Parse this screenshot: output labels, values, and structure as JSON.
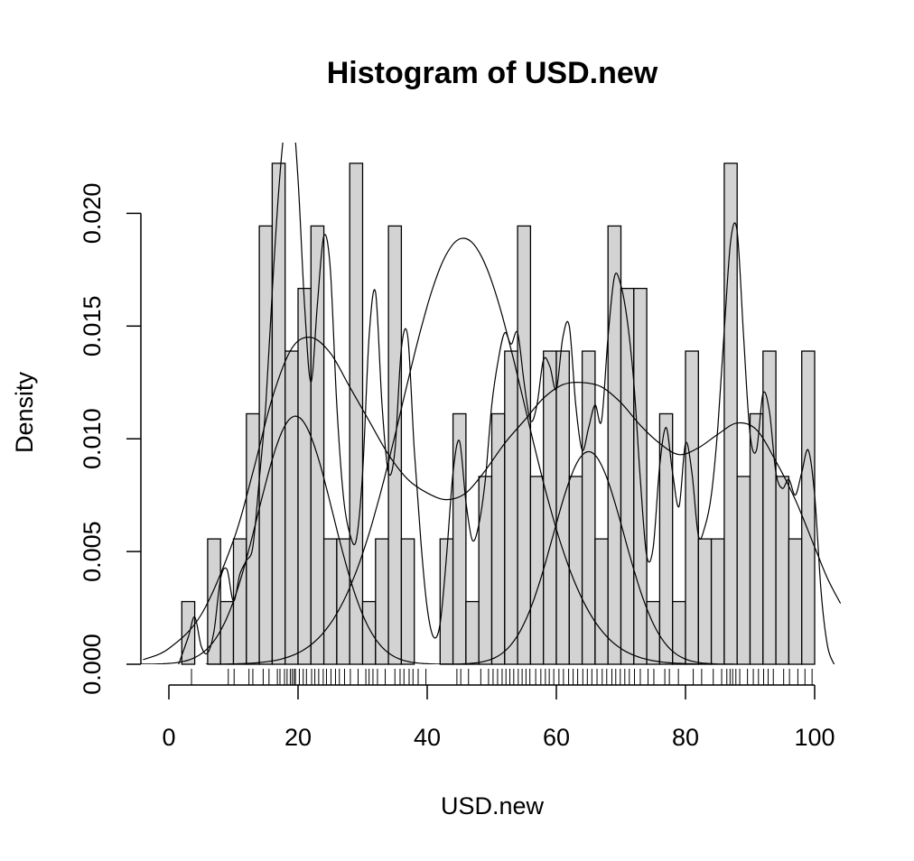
{
  "chart_data": {
    "type": "histogram",
    "title": "Histogram of USD.new",
    "xlabel": "USD.new",
    "ylabel": "Density",
    "xlim": [
      -4,
      104
    ],
    "ylim": [
      0,
      0.0225
    ],
    "x_ticks": [
      0,
      20,
      40,
      60,
      80,
      100
    ],
    "y_ticks": [
      0.0,
      0.005,
      0.01,
      0.015,
      0.02
    ],
    "x_tick_labels": [
      "0",
      "20",
      "40",
      "60",
      "80",
      "100"
    ],
    "y_tick_labels": [
      "0.000",
      "0.005",
      "0.010",
      "0.015",
      "0.020"
    ],
    "bin_width": 2,
    "bin_start": 2,
    "density": [
      0.00278,
      0,
      0.00556,
      0.00278,
      0.00556,
      0.01111,
      0.01944,
      0.02222,
      0.01389,
      0.01667,
      0.01944,
      0.00556,
      0.00556,
      0.02222,
      0.00278,
      0.00556,
      0.01944,
      0.00556,
      0,
      0,
      0.00556,
      0.01111,
      0.00278,
      0.00833,
      0.01111,
      0.01389,
      0.01944,
      0.00833,
      0.01389,
      0.01389,
      0.00833,
      0.01389,
      0.00556,
      0.01944,
      0.01667,
      0.01667,
      0.00278,
      0.01111,
      0.00278,
      0.01389,
      0.00556,
      0.00556,
      0.02222,
      0.00833,
      0.01111,
      0.01389,
      0.00833,
      0.00556,
      0.01389
    ],
    "rug": [
      3.5,
      9.2,
      10.1,
      12.4,
      13.0,
      14.6,
      15.5,
      16.8,
      17.2,
      17.9,
      18.3,
      18.8,
      19.1,
      19.4,
      19.6,
      20.2,
      20.8,
      21.3,
      22.1,
      22.6,
      23.2,
      23.9,
      24.4,
      25.1,
      25.8,
      26.4,
      27.2,
      28.1,
      29.3,
      30.5,
      31.0,
      31.6,
      32.3,
      33.5,
      35.0,
      35.8,
      36.4,
      37.2,
      37.8,
      38.6,
      39.8,
      44.6,
      45.2,
      46.4,
      48.3,
      49.5,
      50.2,
      50.9,
      51.6,
      52.2,
      52.8,
      53.4,
      54.1,
      54.7,
      55.3,
      55.9,
      56.8,
      57.6,
      58.3,
      58.9,
      59.6,
      60.4,
      61.1,
      61.9,
      62.6,
      63.3,
      64.1,
      64.8,
      65.5,
      66.3,
      67.1,
      67.8,
      68.6,
      69.2,
      69.9,
      70.6,
      71.3,
      72.1,
      73.0,
      74.2,
      75.1,
      76.8,
      77.5,
      78.9,
      81.2,
      82.5,
      84.3,
      85.6,
      86.4,
      86.9,
      87.3,
      87.8,
      88.4,
      89.6,
      90.5,
      91.3,
      92.1,
      92.8,
      93.6,
      95.2,
      96.1,
      97.4,
      98.5,
      99.6
    ],
    "curves": [
      {
        "kind": "kernel density (small bandwidth)",
        "points": [
          [
            1.5,
            0.0
          ],
          [
            3,
            0.0012
          ],
          [
            4,
            0.0021
          ],
          [
            5,
            0.0008
          ],
          [
            6,
            0.0005
          ],
          [
            7,
            0.0015
          ],
          [
            8,
            0.0038
          ],
          [
            9,
            0.0042
          ],
          [
            10,
            0.0028
          ],
          [
            11,
            0.004
          ],
          [
            12,
            0.0046
          ],
          [
            13,
            0.0052
          ],
          [
            14,
            0.0082
          ],
          [
            15,
            0.0115
          ],
          [
            16,
            0.0165
          ],
          [
            17,
            0.021
          ],
          [
            18,
            0.024
          ],
          [
            19,
            0.025
          ],
          [
            20,
            0.0215
          ],
          [
            21,
            0.016
          ],
          [
            22,
            0.0125
          ],
          [
            23,
            0.016
          ],
          [
            24,
            0.019
          ],
          [
            25,
            0.0175
          ],
          [
            26,
            0.0115
          ],
          [
            27,
            0.0075
          ],
          [
            28,
            0.0058
          ],
          [
            29,
            0.0055
          ],
          [
            30,
            0.0085
          ],
          [
            31,
            0.0145
          ],
          [
            32,
            0.0165
          ],
          [
            33,
            0.0115
          ],
          [
            34,
            0.0085
          ],
          [
            35,
            0.0095
          ],
          [
            36,
            0.014
          ],
          [
            37,
            0.0145
          ],
          [
            38,
            0.0095
          ],
          [
            39,
            0.0055
          ],
          [
            40,
            0.0025
          ],
          [
            41,
            0.0012
          ],
          [
            42,
            0.0018
          ],
          [
            43,
            0.0048
          ],
          [
            44,
            0.0085
          ],
          [
            45,
            0.0099
          ],
          [
            46,
            0.0072
          ],
          [
            47,
            0.0055
          ],
          [
            48,
            0.0062
          ],
          [
            49,
            0.0082
          ],
          [
            50,
            0.0115
          ],
          [
            51,
            0.0135
          ],
          [
            52,
            0.0147
          ],
          [
            53,
            0.0142
          ],
          [
            54,
            0.0147
          ],
          [
            55,
            0.0125
          ],
          [
            56,
            0.0108
          ],
          [
            57,
            0.0115
          ],
          [
            58,
            0.0135
          ],
          [
            59,
            0.0132
          ],
          [
            60,
            0.0122
          ],
          [
            61,
            0.0145
          ],
          [
            62,
            0.015
          ],
          [
            63,
            0.0115
          ],
          [
            64,
            0.0095
          ],
          [
            65,
            0.0105
          ],
          [
            66,
            0.0115
          ],
          [
            67,
            0.0108
          ],
          [
            68,
            0.0145
          ],
          [
            69,
            0.0172
          ],
          [
            70,
            0.0168
          ],
          [
            71,
            0.0152
          ],
          [
            72,
            0.0125
          ],
          [
            73,
            0.0082
          ],
          [
            74,
            0.0048
          ],
          [
            75,
            0.0052
          ],
          [
            76,
            0.0088
          ],
          [
            77,
            0.0105
          ],
          [
            78,
            0.0085
          ],
          [
            79,
            0.007
          ],
          [
            80,
            0.0098
          ],
          [
            81,
            0.0085
          ],
          [
            82,
            0.0057
          ],
          [
            83,
            0.0061
          ],
          [
            84,
            0.0075
          ],
          [
            85,
            0.0105
          ],
          [
            86,
            0.0148
          ],
          [
            87,
            0.0188
          ],
          [
            88,
            0.0192
          ],
          [
            89,
            0.0145
          ],
          [
            90,
            0.0102
          ],
          [
            91,
            0.0095
          ],
          [
            92,
            0.012
          ],
          [
            93,
            0.0112
          ],
          [
            94,
            0.0085
          ],
          [
            95,
            0.0078
          ],
          [
            96,
            0.0082
          ],
          [
            97,
            0.0075
          ],
          [
            98,
            0.0085
          ],
          [
            99,
            0.0095
          ],
          [
            100,
            0.0075
          ],
          [
            101,
            0.0032
          ],
          [
            102,
            0.0008
          ],
          [
            103,
            0.0
          ]
        ]
      },
      {
        "kind": "kernel density (large bandwidth)",
        "points": [
          [
            -4,
            0.0002
          ],
          [
            0,
            0.0007
          ],
          [
            5,
            0.0022
          ],
          [
            10,
            0.0055
          ],
          [
            13,
            0.0085
          ],
          [
            16,
            0.0118
          ],
          [
            19,
            0.014
          ],
          [
            22,
            0.0145
          ],
          [
            25,
            0.0138
          ],
          [
            28,
            0.0123
          ],
          [
            31,
            0.0108
          ],
          [
            34,
            0.0093
          ],
          [
            37,
            0.0082
          ],
          [
            40,
            0.0076
          ],
          [
            43,
            0.0073
          ],
          [
            46,
            0.0076
          ],
          [
            49,
            0.0086
          ],
          [
            52,
            0.0098
          ],
          [
            55,
            0.0108
          ],
          [
            58,
            0.0118
          ],
          [
            61,
            0.0124
          ],
          [
            64,
            0.0125
          ],
          [
            67,
            0.0123
          ],
          [
            70,
            0.0116
          ],
          [
            73,
            0.0106
          ],
          [
            76,
            0.0098
          ],
          [
            79,
            0.0093
          ],
          [
            82,
            0.0096
          ],
          [
            85,
            0.0102
          ],
          [
            88,
            0.0107
          ],
          [
            91,
            0.0104
          ],
          [
            94,
            0.009
          ],
          [
            97,
            0.0073
          ],
          [
            100,
            0.0052
          ],
          [
            102,
            0.0038
          ],
          [
            104,
            0.0027
          ]
        ]
      },
      {
        "kind": "normal component",
        "mean": 19.6,
        "sd": 5.8,
        "scale": 0.16
      },
      {
        "kind": "normal component",
        "mean": 45.6,
        "sd": 9.5,
        "scale": 0.45
      },
      {
        "kind": "normal component",
        "mean": 65.0,
        "sd": 5.5,
        "scale": 0.13
      }
    ]
  }
}
